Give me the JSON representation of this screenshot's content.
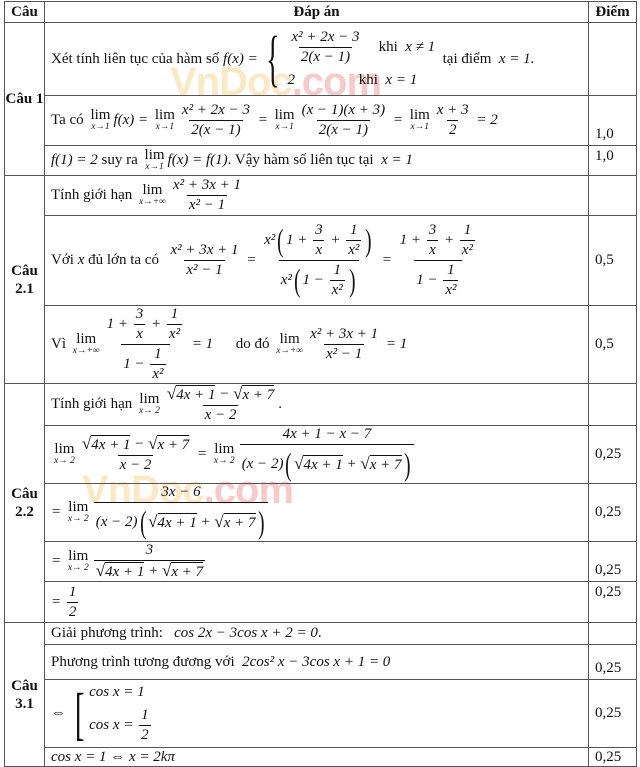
{
  "header": {
    "cau": "Câu",
    "dap_an": "Đáp án",
    "diem": "Điểm"
  },
  "watermark": {
    "part1": "VnDoc",
    "part2": ".com"
  },
  "q1": {
    "label": "Câu 1",
    "scores": [
      "",
      "1,0",
      "1,0"
    ],
    "rows": [
      [
        "Xét tính liên tục của hàm số ",
        {
          "m": "f(x) ="
        },
        {
          "cases": [
            [
              {
                "frac": {
                  "num": [
                    {
                      "m": "x² + 2x − 3"
                    }
                  ],
                  "den": [
                    {
                      "m": "2(x − 1)"
                    }
                  ]
                }
              },
              "    khi  ",
              {
                "m": "x ≠ 1"
              }
            ],
            [
              {
                "m": "2"
              },
              "                 khi  ",
              {
                "m": "x = 1"
              }
            ]
          ]
        },
        "  tại điểm  ",
        {
          "m": "x = 1."
        }
      ],
      [
        "Ta có ",
        {
          "lim": "lim",
          "sub": "x→1"
        },
        {
          "m": "f(x) = "
        },
        {
          "lim": "lim",
          "sub": "x→1"
        },
        {
          "frac": {
            "num": [
              {
                "m": "x² + 2x − 3"
              }
            ],
            "den": [
              {
                "m": "2(x − 1)"
              }
            ]
          }
        },
        {
          "m": " = "
        },
        {
          "lim": "lim",
          "sub": "x→1"
        },
        {
          "frac": {
            "num": [
              {
                "m": "(x − 1)(x + 3)"
              }
            ],
            "den": [
              {
                "m": "2(x − 1)"
              }
            ]
          }
        },
        {
          "m": " = "
        },
        {
          "lim": "lim",
          "sub": "x→1"
        },
        {
          "frac": {
            "num": [
              {
                "m": "x + 3"
              }
            ],
            "den": [
              {
                "m": "2"
              }
            ]
          }
        },
        {
          "m": " = 2"
        }
      ],
      [
        {
          "m": "f(1) = 2"
        },
        " suy ra ",
        {
          "lim": "lim",
          "sub": "x→1"
        },
        {
          "m": "f(x) = f(1)"
        },
        ". Vậy hàm số liên tục tại  ",
        {
          "m": "x = 1"
        }
      ]
    ]
  },
  "q21": {
    "label": "Câu 2.1",
    "scores": [
      "",
      "0,5",
      "0,5"
    ],
    "rows": [
      [
        "Tính giới hạn ",
        {
          "lim": "lim",
          "sub": "x→+∞"
        },
        {
          "frac": {
            "num": [
              {
                "m": "x² + 3x + 1"
              }
            ],
            "den": [
              {
                "m": "x² − 1"
              }
            ]
          }
        }
      ],
      [
        "Với ",
        {
          "m": "x"
        },
        " đủ lớn ta có  ",
        {
          "frac": {
            "num": [
              {
                "m": "x² + 3x + 1"
              }
            ],
            "den": [
              {
                "m": "x² − 1"
              }
            ]
          }
        },
        {
          "m": " = "
        },
        {
          "frac": {
            "num": [
              {
                "m": "x²"
              },
              {
                "paren": [
                  {
                    "m": "1 + "
                  },
                  {
                    "frac": {
                      "num": [
                        {
                          "m": "3"
                        }
                      ],
                      "den": [
                        {
                          "m": "x"
                        }
                      ]
                    }
                  },
                  {
                    "m": " + "
                  },
                  {
                    "frac": {
                      "num": [
                        {
                          "m": "1"
                        }
                      ],
                      "den": [
                        {
                          "m": "x²"
                        }
                      ]
                    }
                  }
                ]
              }
            ],
            "den": [
              {
                "m": "x²"
              },
              {
                "paren": [
                  {
                    "m": "1 − "
                  },
                  {
                    "frac": {
                      "num": [
                        {
                          "m": "1"
                        }
                      ],
                      "den": [
                        {
                          "m": "x²"
                        }
                      ]
                    }
                  }
                ]
              }
            ]
          }
        },
        {
          "m": " = "
        },
        {
          "frac": {
            "num": [
              {
                "m": "1 + "
              },
              {
                "frac": {
                  "num": [
                    {
                      "m": "3"
                    }
                  ],
                  "den": [
                    {
                      "m": "x"
                    }
                  ]
                }
              },
              {
                "m": " + "
              },
              {
                "frac": {
                  "num": [
                    {
                      "m": "1"
                    }
                  ],
                  "den": [
                    {
                      "m": "x²"
                    }
                  ]
                }
              }
            ],
            "den": [
              {
                "m": "1 − "
              },
              {
                "frac": {
                  "num": [
                    {
                      "m": "1"
                    }
                  ],
                  "den": [
                    {
                      "m": "x²"
                    }
                  ]
                }
              }
            ]
          }
        }
      ],
      [
        "Vì ",
        {
          "lim": "lim",
          "sub": "x→+∞"
        },
        {
          "frac": {
            "num": [
              {
                "m": "1 + "
              },
              {
                "frac": {
                  "num": [
                    {
                      "m": "3"
                    }
                  ],
                  "den": [
                    {
                      "m": "x"
                    }
                  ]
                }
              },
              {
                "m": " + "
              },
              {
                "frac": {
                  "num": [
                    {
                      "m": "1"
                    }
                  ],
                  "den": [
                    {
                      "m": "x²"
                    }
                  ]
                }
              }
            ],
            "den": [
              {
                "m": "1 − "
              },
              {
                "frac": {
                  "num": [
                    {
                      "m": "1"
                    }
                  ],
                  "den": [
                    {
                      "m": "x²"
                    }
                  ]
                }
              }
            ]
          }
        },
        {
          "m": " = 1"
        },
        "      do đó ",
        {
          "lim": "lim",
          "sub": "x→+∞"
        },
        {
          "frac": {
            "num": [
              {
                "m": "x² + 3x + 1"
              }
            ],
            "den": [
              {
                "m": "x² − 1"
              }
            ]
          }
        },
        {
          "m": " = 1"
        }
      ]
    ]
  },
  "q22": {
    "label": "Câu 2.2",
    "scores": [
      "",
      "0,25",
      "0,25",
      "0,25",
      "0,25"
    ],
    "rows": [
      [
        "Tính giới hạn ",
        {
          "lim": "lim",
          "sub": "x→ 2"
        },
        {
          "frac": {
            "num": [
              {
                "sqrt": [
                  {
                    "m": "4x + 1"
                  }
                ]
              },
              {
                "m": " − "
              },
              {
                "sqrt": [
                  {
                    "m": "x + 7"
                  }
                ]
              }
            ],
            "den": [
              {
                "m": "x − 2"
              }
            ]
          }
        },
        "."
      ],
      [
        {
          "lim": "lim",
          "sub": "x→ 2"
        },
        {
          "frac": {
            "num": [
              {
                "sqrt": [
                  {
                    "m": "4x + 1"
                  }
                ]
              },
              {
                "m": " − "
              },
              {
                "sqrt": [
                  {
                    "m": "x + 7"
                  }
                ]
              }
            ],
            "den": [
              {
                "m": "x − 2"
              }
            ]
          }
        },
        {
          "m": " = "
        },
        {
          "lim": "lim",
          "sub": "x→ 2"
        },
        {
          "frac": {
            "num": [
              {
                "m": "4x + 1 − x − 7"
              }
            ],
            "den": [
              {
                "m": "(x − 2)"
              },
              {
                "paren": [
                  {
                    "sqrt": [
                      {
                        "m": "4x + 1"
                      }
                    ]
                  },
                  {
                    "m": " + "
                  },
                  {
                    "sqrt": [
                      {
                        "m": "x + 7"
                      }
                    ]
                  }
                ]
              }
            ]
          }
        }
      ],
      [
        {
          "m": "= "
        },
        {
          "lim": "lim",
          "sub": "x→ 2"
        },
        {
          "frac": {
            "num": [
              {
                "m": "3x − 6"
              }
            ],
            "den": [
              {
                "m": "(x − 2)"
              },
              {
                "paren": [
                  {
                    "sqrt": [
                      {
                        "m": "4x + 1"
                      }
                    ]
                  },
                  {
                    "m": " + "
                  },
                  {
                    "sqrt": [
                      {
                        "m": "x + 7"
                      }
                    ]
                  }
                ]
              }
            ]
          }
        }
      ],
      [
        {
          "m": "= "
        },
        {
          "lim": "lim",
          "sub": "x→ 2"
        },
        {
          "frac": {
            "num": [
              {
                "m": "3"
              }
            ],
            "den": [
              {
                "sqrt": [
                  {
                    "m": "4x + 1"
                  }
                ]
              },
              {
                "m": " + "
              },
              {
                "sqrt": [
                  {
                    "m": "x + 7"
                  }
                ]
              }
            ]
          }
        }
      ],
      [
        {
          "m": "= "
        },
        {
          "frac": {
            "num": [
              {
                "m": "1"
              }
            ],
            "den": [
              {
                "m": "2"
              }
            ]
          }
        }
      ]
    ]
  },
  "q31": {
    "label": "Câu 3.1",
    "scores": [
      "",
      "0,25",
      "0,25",
      "0,25"
    ],
    "rows": [
      [
        "Giải phương trình:   ",
        {
          "m": "cos 2x − 3cos x + 2 = 0"
        },
        "."
      ],
      [
        "Phương trình tương đương với  ",
        {
          "m": "2cos² x − 3cos x + 1 = 0"
        }
      ],
      [
        {
          "m": "⇔ "
        },
        {
          "bracket": [
            [
              {
                "m": "cos x = 1"
              }
            ],
            [
              {
                "m": "cos x = "
              },
              {
                "frac": {
                  "num": [
                    {
                      "m": "1"
                    }
                  ],
                  "den": [
                    {
                      "m": "2"
                    }
                  ]
                }
              }
            ]
          ]
        }
      ],
      [
        {
          "m": "cos x = 1 ⇔ x = 2kπ"
        }
      ]
    ]
  }
}
